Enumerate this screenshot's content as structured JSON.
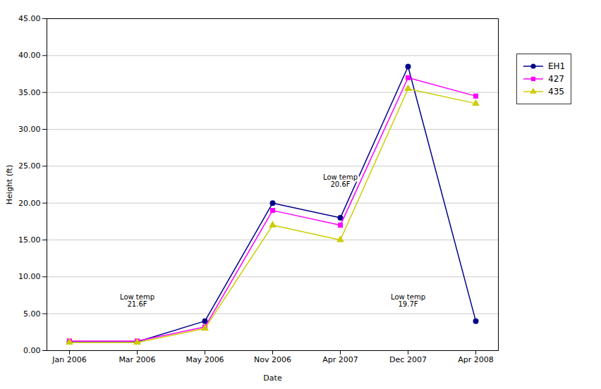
{
  "chart_data": {
    "type": "line",
    "categories": [
      "Jan 2006",
      "Mar 2006",
      "May 2006",
      "Nov 2006",
      "Apr 2007",
      "Dec 2007",
      "Apr 2008"
    ],
    "series": [
      {
        "name": "EH1",
        "color": "#00008B",
        "marker": "circle",
        "values": [
          1.2,
          1.2,
          4.0,
          20.0,
          18.0,
          38.5,
          4.0
        ]
      },
      {
        "name": "427",
        "color": "#FF00FF",
        "marker": "square",
        "values": [
          1.3,
          1.3,
          3.2,
          19.0,
          17.0,
          37.0,
          34.5
        ]
      },
      {
        "name": "435",
        "color": "#CCCC00",
        "marker": "triangle",
        "values": [
          1.1,
          1.1,
          3.0,
          17.0,
          15.0,
          35.5,
          33.5
        ]
      }
    ],
    "annotations": [
      {
        "x": "Mar 2006",
        "y": 6.8,
        "text": "Low temp\n21.6F"
      },
      {
        "x": "Apr 2007",
        "y": 23.0,
        "text": "Low temp\n20.6F"
      },
      {
        "x": "Dec 2007",
        "y": 6.8,
        "text": "Low temp\n19.7F"
      }
    ],
    "xlabel": "Date",
    "ylabel": "Height (ft)",
    "ylim": [
      0,
      45
    ],
    "yticks": [
      {
        "value": 0,
        "label": "0.00"
      },
      {
        "value": 5,
        "label": "5.00"
      },
      {
        "value": 10,
        "label": "10.00"
      },
      {
        "value": 15,
        "label": "15.00"
      },
      {
        "value": 20,
        "label": "20.00"
      },
      {
        "value": 25,
        "label": "25.00"
      },
      {
        "value": 30,
        "label": "30.00"
      },
      {
        "value": 35,
        "label": "35.00"
      },
      {
        "value": 40,
        "label": "40.00"
      },
      {
        "value": 45,
        "label": "45.00"
      }
    ],
    "grid": true,
    "legend": "right"
  }
}
